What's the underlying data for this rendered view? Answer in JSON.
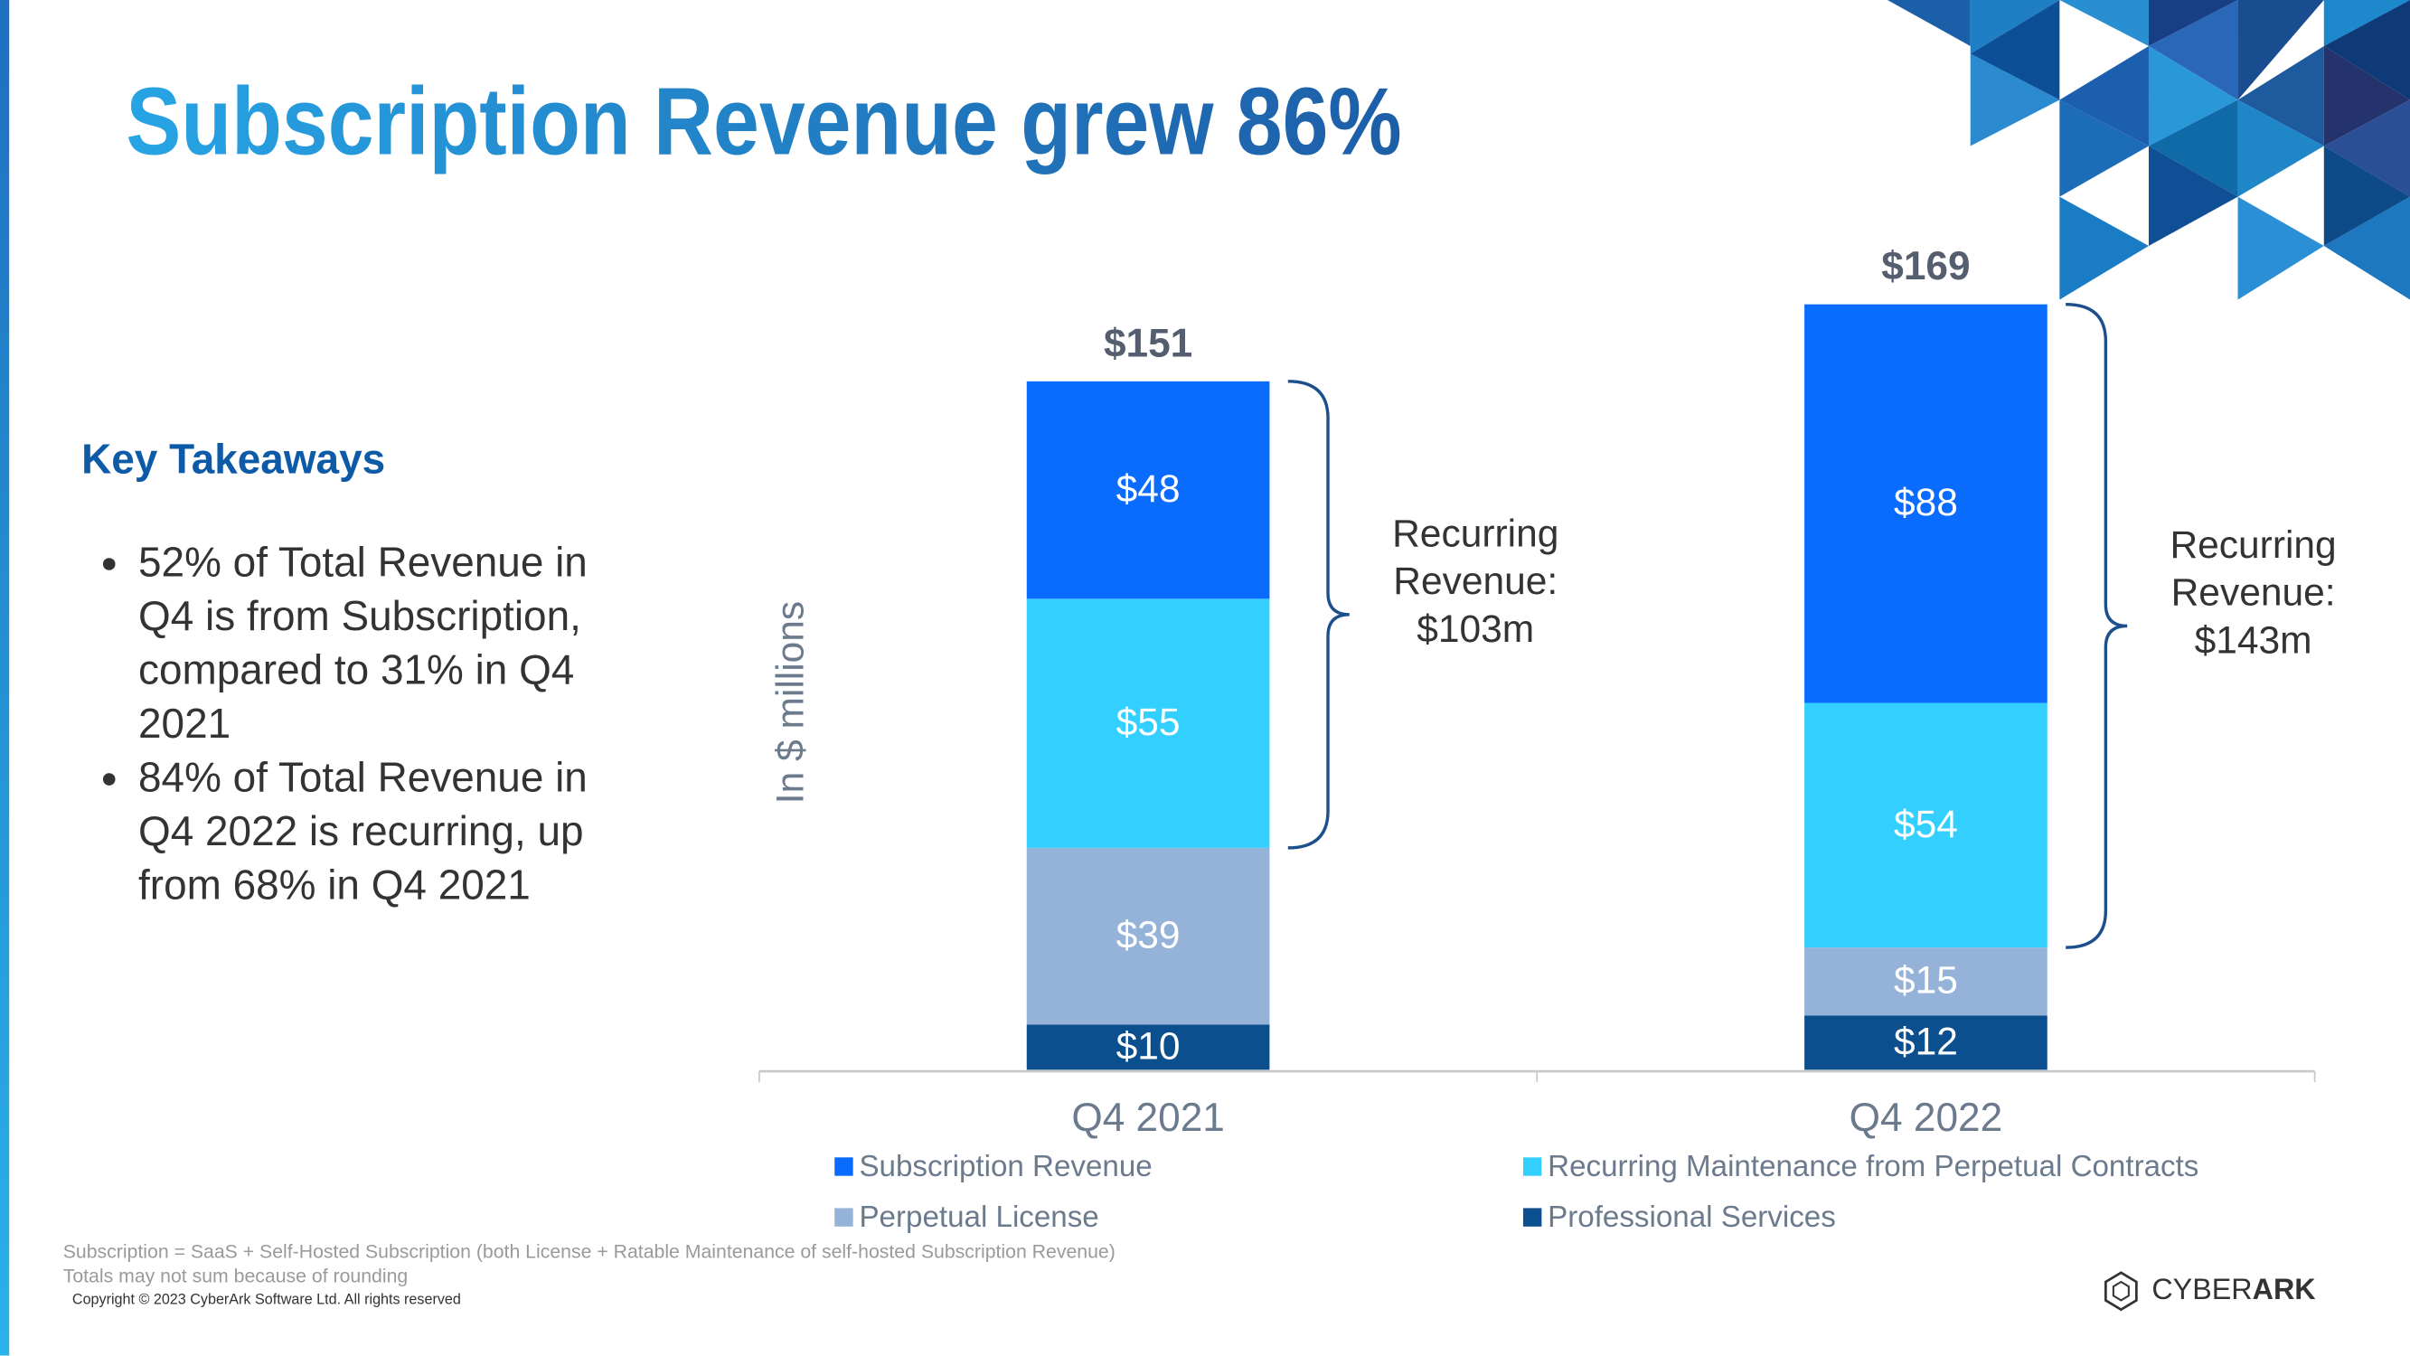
{
  "title": "Subscription Revenue grew 86%",
  "takeaways": {
    "heading": "Key Takeaways",
    "bullets": [
      "52% of Total Revenue in Q4 is from Subscription, compared to 31% in Q4 2021",
      "84% of Total Revenue in Q4 2022 is recurring, up from 68% in Q4 2021"
    ]
  },
  "chart_data": {
    "type": "stacked_bar",
    "y_label": "In $ millions",
    "categories": [
      "Q4 2021",
      "Q4 2022"
    ],
    "series": [
      {
        "name": "Professional Services",
        "color": "#0b4f8f",
        "values": [
          10,
          12
        ],
        "value_labels": [
          "$10",
          "$12"
        ]
      },
      {
        "name": "Perpetual License",
        "color": "#95b3d9",
        "values": [
          39,
          15
        ],
        "value_labels": [
          "$39",
          "$15"
        ]
      },
      {
        "name": "Recurring Maintenance from Perpetual Contracts",
        "color": "#33cfff",
        "values": [
          55,
          54
        ],
        "value_labels": [
          "$55",
          "$54"
        ]
      },
      {
        "name": "Subscription Revenue",
        "color": "#0a6cff",
        "values": [
          48,
          88
        ],
        "value_labels": [
          "$48",
          "$88"
        ]
      }
    ],
    "totals": [
      151,
      169
    ],
    "total_labels": [
      "$151",
      "$169"
    ],
    "annotations": [
      [
        "Recurring",
        "Revenue:",
        "$103m"
      ],
      [
        "Recurring",
        "Revenue:",
        "$143m"
      ]
    ]
  },
  "footnotes": [
    "Subscription = SaaS + Self-Hosted Subscription (both License + Ratable Maintenance of self-hosted Subscription Revenue)",
    "Totals may not sum because of rounding"
  ],
  "copyright": "Copyright © 2023 CyberArk Software Ltd. All rights reserved",
  "logo": [
    "CYBER",
    "ARK"
  ]
}
